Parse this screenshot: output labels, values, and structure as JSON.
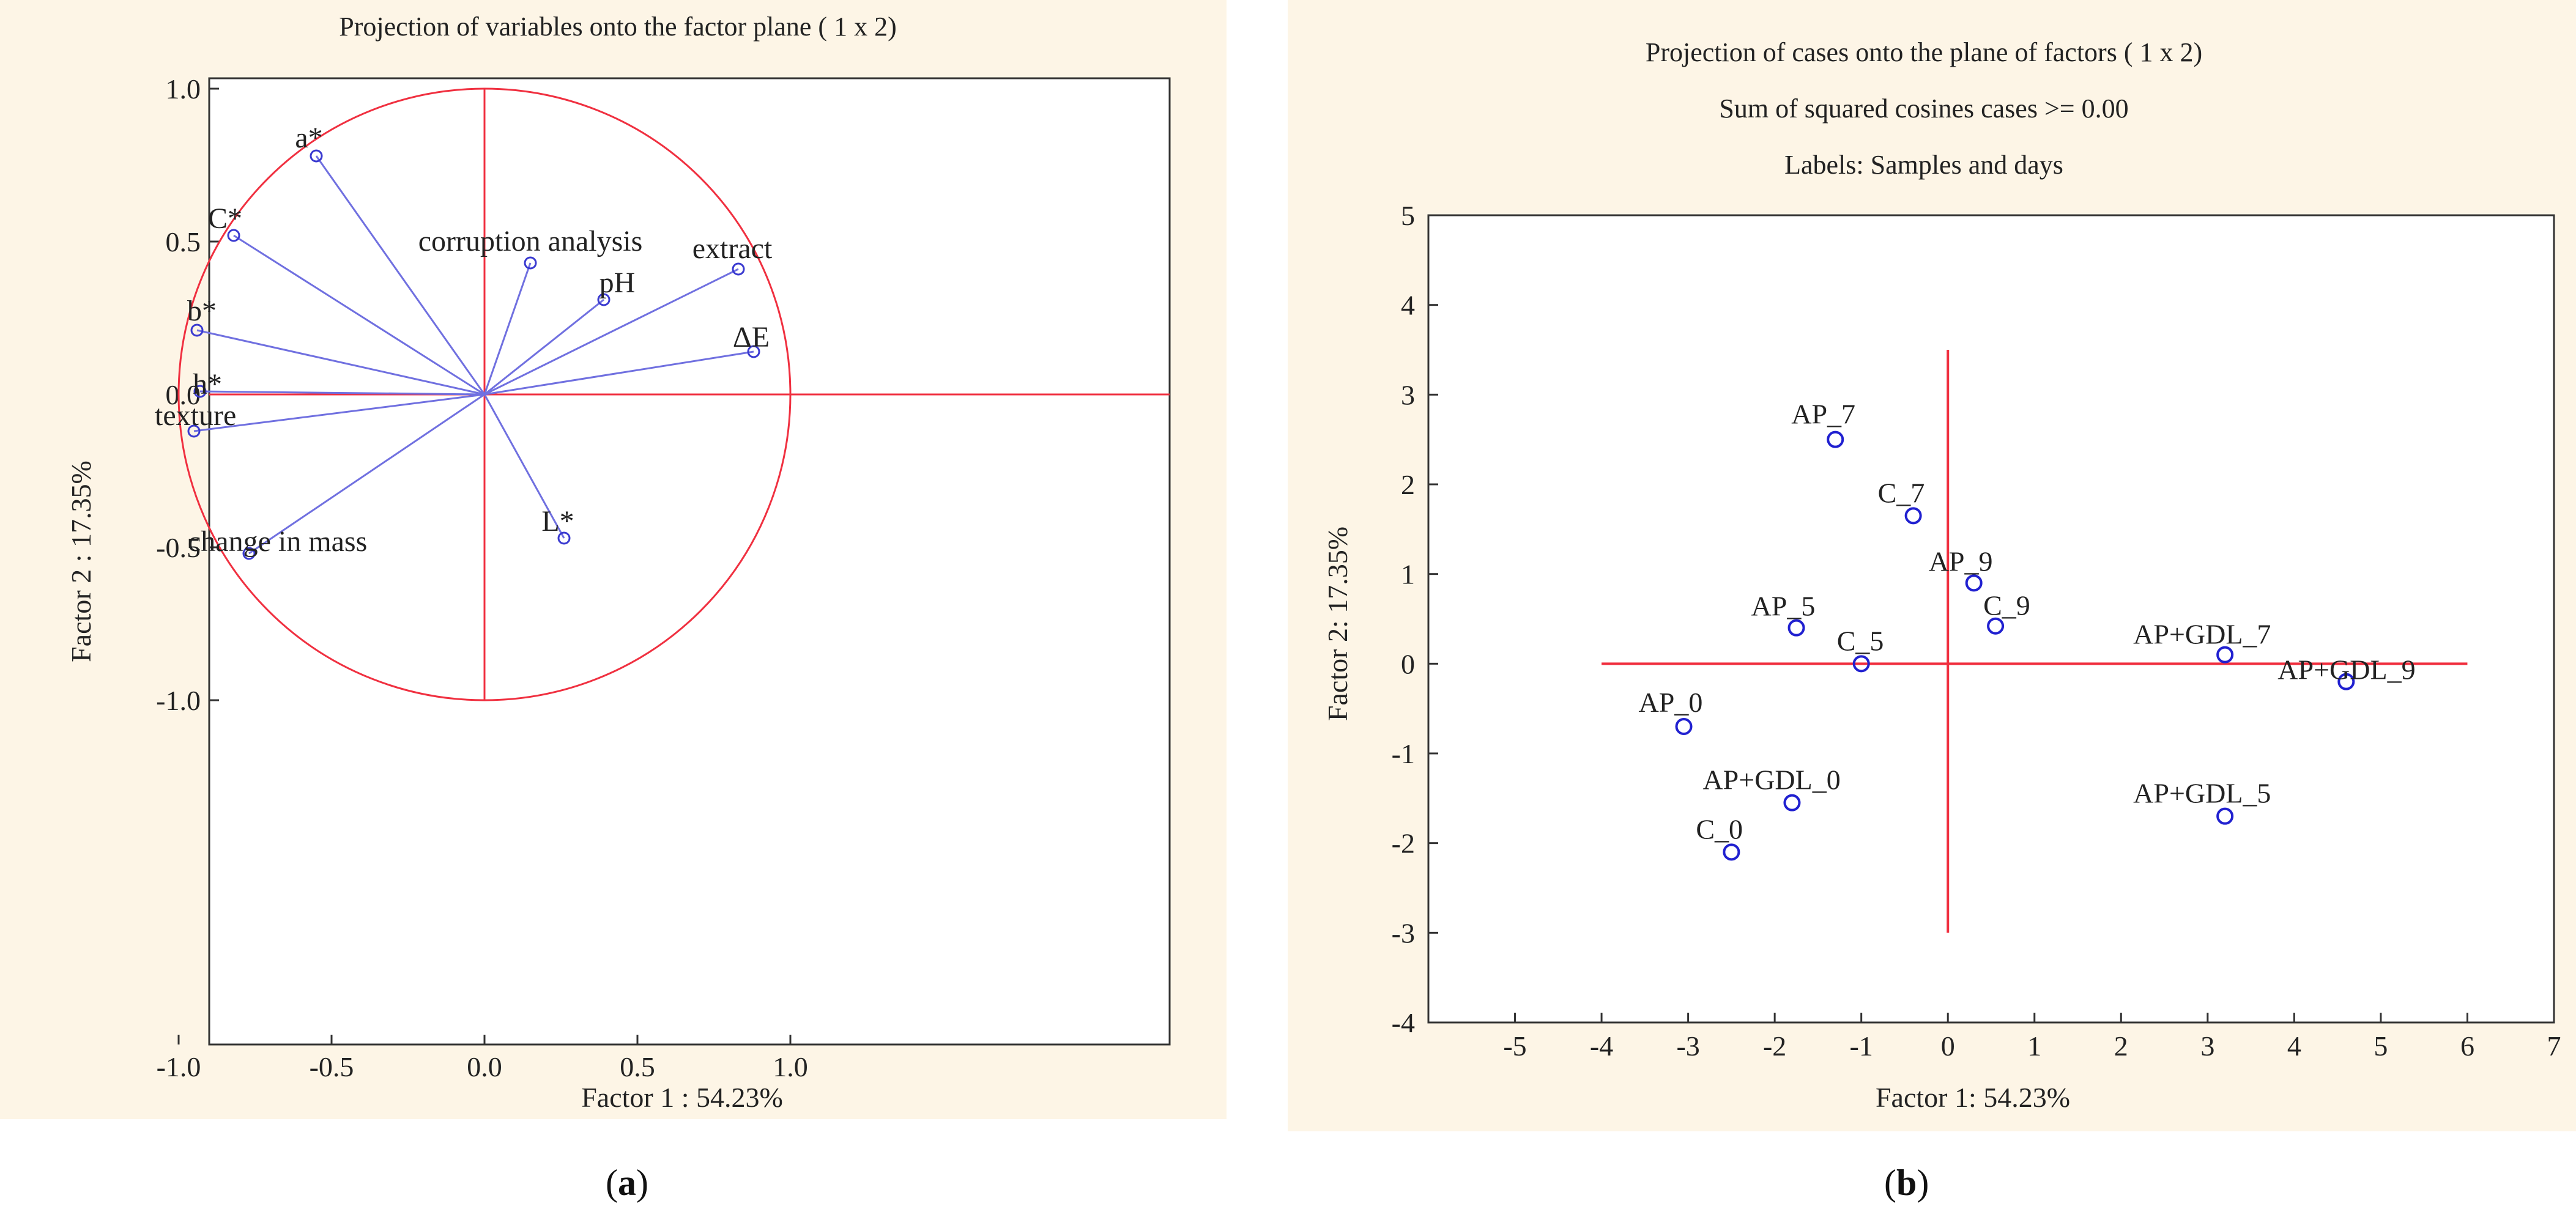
{
  "chart_data": [
    {
      "type": "scatter",
      "variant": "correlation-circle",
      "title": "Projection of variables onto the factor plane   ( 1 x  2)",
      "xlabel": "Factor 1 : 54.23%",
      "ylabel": "Factor 2 : 17.35%",
      "xlim": [
        -1.1,
        1.1
      ],
      "ylim": [
        -1.1,
        1.1
      ],
      "x_ticks": [
        "-1.0",
        "-0.5",
        "0.0",
        "0.5",
        "1.0"
      ],
      "y_ticks": [
        "1.0",
        "0.5",
        "0.0",
        "-0.5",
        "-1.0"
      ],
      "grid": false,
      "unit_circle": true,
      "colors": {
        "vector": "#7070e0",
        "circle": "#f03040",
        "axis": "#f03040",
        "marker": "#3a3ad0"
      },
      "points": [
        {
          "label": "a*",
          "x": -0.55,
          "y": 0.78
        },
        {
          "label": "C*",
          "x": -0.82,
          "y": 0.52
        },
        {
          "label": "corruption analysis",
          "x": 0.15,
          "y": 0.43
        },
        {
          "label": "extract",
          "x": 0.83,
          "y": 0.41
        },
        {
          "label": "pH",
          "x": 0.39,
          "y": 0.31
        },
        {
          "label": "b*",
          "x": -0.94,
          "y": 0.21
        },
        {
          "label": "ΔE",
          "x": 0.88,
          "y": 0.14
        },
        {
          "label": "h*",
          "x": -0.93,
          "y": 0.01
        },
        {
          "label": "texture",
          "x": -0.95,
          "y": -0.12
        },
        {
          "label": "change in mass",
          "x": -0.77,
          "y": -0.52
        },
        {
          "label": "L*",
          "x": 0.26,
          "y": -0.47
        }
      ]
    },
    {
      "type": "scatter",
      "title": "Projection of cases onto the plane of factors   ( 1 x  2)",
      "subtitle": "Sum of squared cosines cases >=  0.00",
      "subtitle2": "Labels: Samples and days",
      "xlabel": "Factor 1: 54.23%",
      "ylabel": "Factor 2: 17.35%",
      "xlim": [
        -6,
        7
      ],
      "ylim": [
        -4,
        5
      ],
      "x_ticks": [
        "-5",
        "-4",
        "-3",
        "-2",
        "-1",
        "0",
        "1",
        "2",
        "3",
        "4",
        "5",
        "6",
        "7"
      ],
      "y_ticks": [
        "5",
        "4",
        "3",
        "2",
        "1",
        "0",
        "-1",
        "-2",
        "-3",
        "-4"
      ],
      "grid": false,
      "colors": {
        "axis": "#f03040",
        "marker": "#2020d0"
      },
      "points": [
        {
          "label": "AP_7",
          "x": -1.3,
          "y": 2.5
        },
        {
          "label": "C_7",
          "x": -0.4,
          "y": 1.65
        },
        {
          "label": "AP_9",
          "x": 0.3,
          "y": 0.9
        },
        {
          "label": "C_9",
          "x": 0.55,
          "y": 0.42
        },
        {
          "label": "AP_5",
          "x": -1.75,
          "y": 0.4
        },
        {
          "label": "C_5",
          "x": -1.0,
          "y": 0.0
        },
        {
          "label": "AP+GDL_7",
          "x": 3.2,
          "y": 0.1
        },
        {
          "label": "AP+GDL_9",
          "x": 4.6,
          "y": -0.2
        },
        {
          "label": "AP_0",
          "x": -3.05,
          "y": -0.7
        },
        {
          "label": "AP+GDL_0",
          "x": -1.8,
          "y": -1.55
        },
        {
          "label": "AP+GDL_5",
          "x": 3.2,
          "y": -1.7
        },
        {
          "label": "C_0",
          "x": -2.5,
          "y": -2.1
        }
      ]
    }
  ],
  "captions": {
    "a": "a",
    "b": "b"
  }
}
